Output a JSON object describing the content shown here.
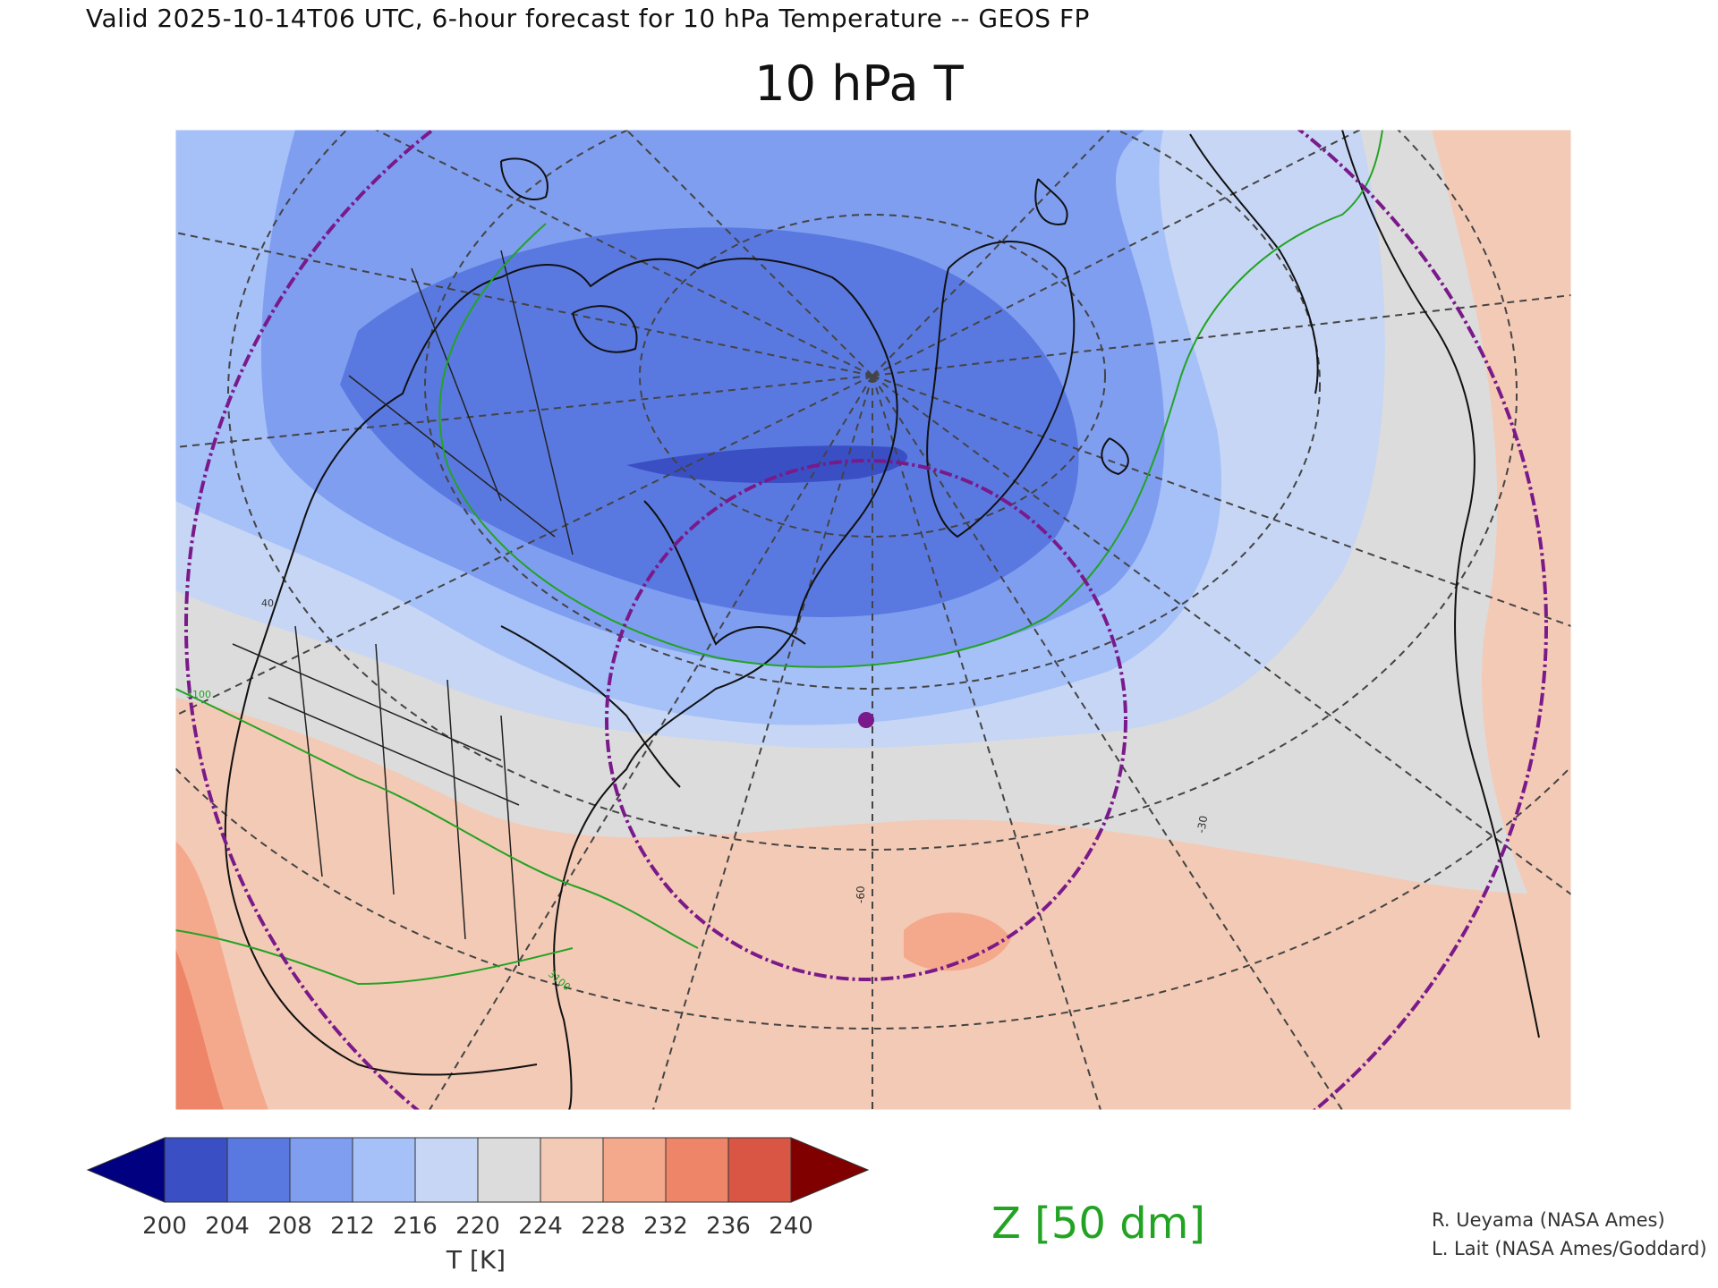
{
  "header": {
    "valid_line": "Valid 2025-10-14T06 UTC, 6-hour forecast for 10 hPa Temperature -- GEOS FP",
    "title": "10 hPa T"
  },
  "colorbar": {
    "label": "T [K]",
    "ticks": [
      "200",
      "204",
      "208",
      "212",
      "216",
      "220",
      "224",
      "228",
      "232",
      "236",
      "240"
    ],
    "colors": [
      "#000080",
      "#3a4fc4",
      "#5a79e0",
      "#7f9ef0",
      "#a6c0f8",
      "#c6d6f4",
      "#dcdcdc",
      "#f3cab6",
      "#f4a98d",
      "#ee8568",
      "#d95544",
      "#800000"
    ]
  },
  "overlay": {
    "contour_label": "Z [50 dm]",
    "contour_color": "#23a323",
    "contour_values": [
      "3100",
      "3100"
    ],
    "range_ring_color": "#7a1a8a"
  },
  "graticule": {
    "labels": [
      "-60",
      "-30",
      "40"
    ]
  },
  "credits": {
    "line1": "R. Ueyama (NASA Ames)",
    "line2": "L. Lait (NASA Ames/Goddard)"
  }
}
